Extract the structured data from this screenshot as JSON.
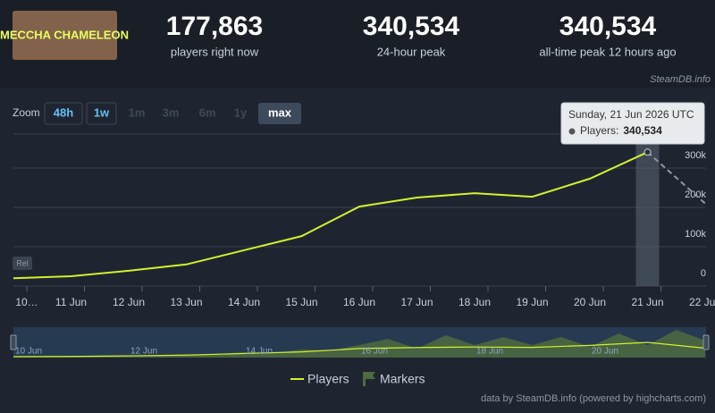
{
  "header": {
    "logo_text": "MECCHA CHAMELEON",
    "stats": [
      {
        "value": "177,863",
        "label": "players right now"
      },
      {
        "value": "340,534",
        "label": "24-hour peak"
      },
      {
        "value": "340,534",
        "label": "all-time peak 12 hours ago"
      }
    ],
    "source": "SteamDB.info"
  },
  "zoom": {
    "label": "Zoom",
    "buttons": [
      "48h",
      "1w",
      "1m",
      "3m",
      "6m",
      "1y",
      "max"
    ],
    "selected": 6
  },
  "chart_data": [
    {
      "type": "line",
      "categories": [
        "10…",
        "11 Jun",
        "12 Jun",
        "13 Jun",
        "14 Jun",
        "15 Jun",
        "16 Jun",
        "17 Jun",
        "18 Jun",
        "19 Jun",
        "20 Jun",
        "21 Jun",
        "22 Jun"
      ],
      "series": [
        {
          "name": "Players",
          "color": "#d4f02f",
          "values": [
            20000,
            25000,
            39000,
            55000,
            91000,
            127000,
            202000,
            225000,
            236000,
            227000,
            273000,
            340534,
            210000
          ]
        }
      ],
      "dashed_last": true,
      "ylim": [
        0,
        400000
      ],
      "yticks": [
        0,
        {
          "value": 100000,
          "label": "100k"
        },
        {
          "value": 200000,
          "label": "200k"
        },
        {
          "value": 300000,
          "label": "300k"
        }
      ],
      "grid": true,
      "flags": [
        "Rel"
      ],
      "tooltip": {
        "title": "Sunday, 21 Jun 2026 UTC",
        "label": "Players:",
        "value_label": "340,534"
      }
    },
    {
      "type": "area",
      "categories": [
        "10 Jun",
        null,
        null,
        null,
        "12 Jun",
        null,
        null,
        null,
        "14 Jun",
        null,
        null,
        null,
        "16 Jun",
        null,
        null,
        null,
        "18 Jun",
        null,
        null,
        null,
        "20 Jun",
        null,
        null,
        null,
        null
      ],
      "series": [
        {
          "name": "Markers",
          "color": "#4d6b3e",
          "values": [
            20000,
            20000,
            20000,
            20000,
            40000,
            40000,
            60000,
            80000,
            120000,
            100000,
            180000,
            160000,
            280000,
            420000,
            200000,
            500000,
            280000,
            460000,
            280000,
            460000,
            240000,
            540000,
            280000,
            620000,
            380000
          ]
        }
      ],
      "ylim": [
        0,
        640000
      ]
    }
  ],
  "credits": "data by SteamDB.info (powered by highcharts.com)"
}
